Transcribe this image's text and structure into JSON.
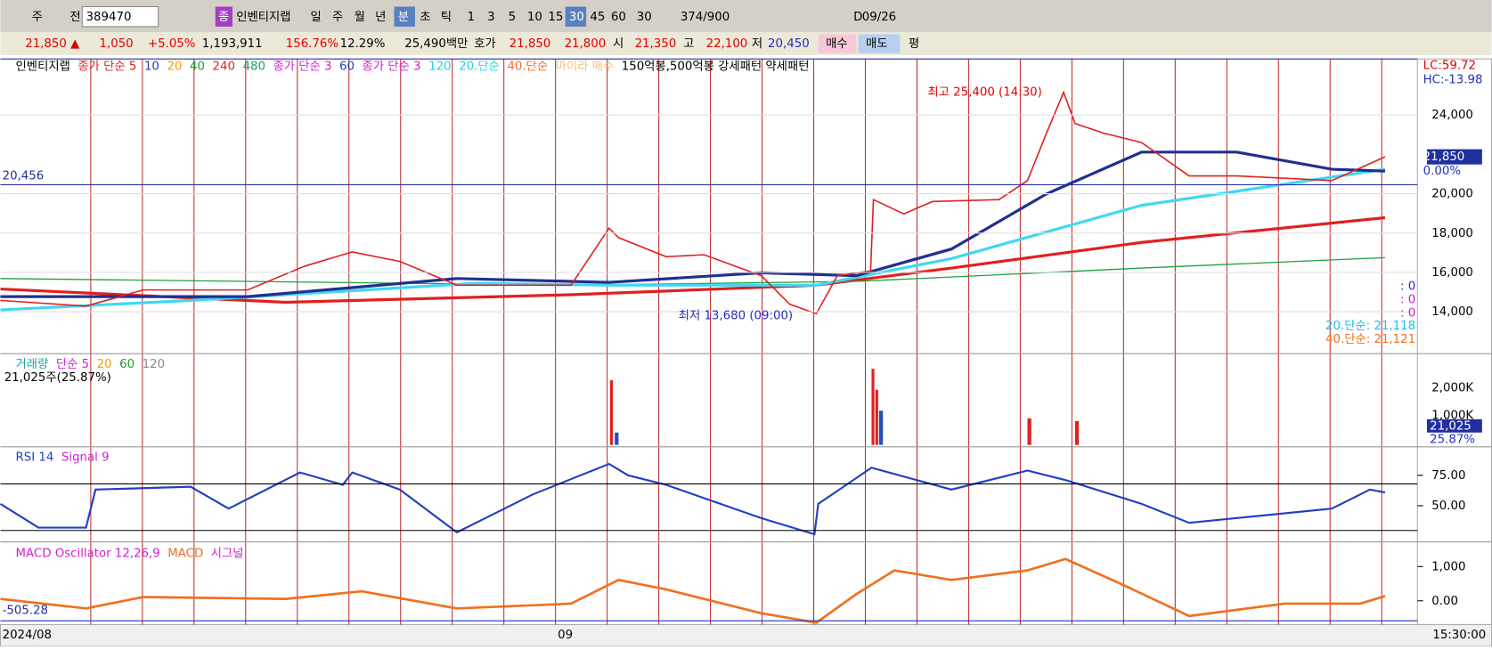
{
  "toolbar": [
    "주",
    "전",
    "389470",
    "종",
    "인벤티지랩",
    "일",
    "주",
    "월",
    "년",
    "분",
    "초",
    "틱",
    "1",
    "3",
    "5",
    "10",
    "15",
    "30",
    "45",
    "60",
    "30",
    "374/900",
    "D",
    "09/26"
  ],
  "info_bar": [
    "21,850 ▲",
    "1,050",
    "+5.05%",
    "1,193,911",
    "156.76%",
    "12.29%",
    "25,490백만",
    "호가",
    "21,850",
    "21,800",
    "시",
    "21,350",
    "고",
    "22,100",
    "저",
    "20,450",
    "매수",
    "매도",
    "평"
  ],
  "price_pane": {
    "legend": [
      {
        "text": "인벤티지랩",
        "color": "#000000"
      },
      {
        "text": "종가 단순 5",
        "color": "#e02020"
      },
      {
        "text": "10",
        "color": "#2040c0"
      },
      {
        "text": "20",
        "color": "#f0a000"
      },
      {
        "text": "40",
        "color": "#20a020"
      },
      {
        "text": "240",
        "color": "#e02020"
      },
      {
        "text": "480",
        "color": "#20a060"
      },
      {
        "text": "종가 단순 3",
        "color": "#d020d0"
      },
      {
        "text": "60",
        "color": "#2040c0"
      },
      {
        "text": "종가 단순 3",
        "color": "#d020d0"
      },
      {
        "text": "120",
        "color": "#20d0f0"
      },
      {
        "text": "20.단순",
        "color": "#20d0f0"
      },
      {
        "text": "40.단순",
        "color": "#f07020"
      },
      {
        "text": "마이라 매수",
        "color": "#f0c080"
      },
      {
        "text": "150억봉,500억봉 강세패턴  약세패턴",
        "color": "#000000"
      }
    ],
    "yticks": [
      {
        "value": 24000,
        "label": "24,000"
      },
      {
        "value": 20000,
        "label": "20,000"
      },
      {
        "value": 18000,
        "label": "18,000"
      },
      {
        "value": 16000,
        "label": "16,000"
      },
      {
        "value": 14000,
        "label": "14,000"
      }
    ],
    "right_labels": [
      "LC:59.72",
      "HC:-13.98",
      "21,850",
      "0.00%"
    ],
    "high": "최고 25,400 (14:30)",
    "low": "최저 13,680 (09:00)",
    "ref_line": {
      "value": 20456,
      "label": "20,456"
    },
    "ma_labels": [
      "20.단순: 21,118",
      "40.단순: 21,121"
    ],
    "signals": [
      ": 0",
      ": 0",
      ": 0"
    ]
  },
  "volume_pane": {
    "legend": [
      {
        "text": "거래량",
        "color": "#20a0a0"
      },
      {
        "text": "단순 5",
        "color": "#d020d0"
      },
      {
        "text": "20",
        "color": "#f0a000"
      },
      {
        "text": "60",
        "color": "#20a020"
      },
      {
        "text": "120",
        "color": "#888888"
      }
    ],
    "sub": "21,025주(25.87%)",
    "yticks": [
      "2,000K",
      "1,000K"
    ],
    "right_labels": [
      "21,025",
      "25.87%"
    ]
  },
  "rsi_pane": {
    "legend": [
      {
        "text": "RSI 14",
        "color": "#2040c0"
      },
      {
        "text": "Signal 9",
        "color": "#d020d0"
      }
    ],
    "yticks": [
      {
        "value": 75,
        "label": "75.00"
      },
      {
        "value": 50,
        "label": "50.00"
      }
    ]
  },
  "macd_pane": {
    "legend": [
      {
        "text": "MACD Oscillator 12,26,9",
        "color": "#d020d0"
      },
      {
        "text": "MACD",
        "color": "#f07020"
      },
      {
        "text": "시그널",
        "color": "#d020d0"
      }
    ],
    "yticks": [
      {
        "value": 1000,
        "label": "1,000"
      },
      {
        "value": 0,
        "label": "0.00"
      }
    ],
    "left_label": "-505.28"
  },
  "x_axis": [
    "2024/08",
    "09",
    "15:30:00"
  ]
}
